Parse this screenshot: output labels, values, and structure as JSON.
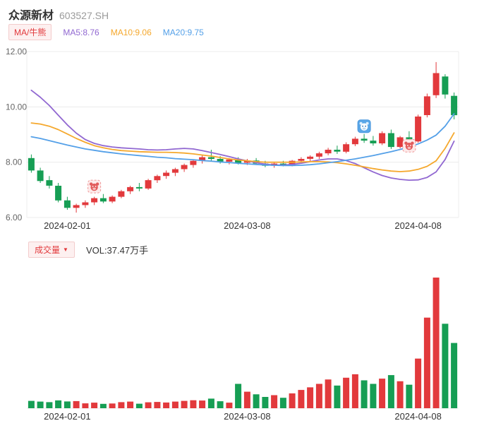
{
  "header": {
    "title": "众源新材",
    "code": "603527.SH"
  },
  "legend": {
    "ma_toggle": "MA/牛熊",
    "ma5": "MA5:8.76",
    "ma10": "MA10:9.06",
    "ma20": "MA20:9.75"
  },
  "volume_header": {
    "label": "成交量",
    "dropdown_arrow": "▼",
    "vol_text": "VOL:37.47万手"
  },
  "colors": {
    "up": "#e2393c",
    "down": "#169e54",
    "ma5": "#9168d1",
    "ma10": "#f5a82d",
    "ma20": "#54a0e8",
    "bull": "#5aa7e8",
    "bear": "#e25c5c",
    "grid": "#ececec",
    "axis_text": "#666666",
    "x_label": "#333333"
  },
  "chart_data": {
    "type": "candlestick",
    "title": "众源新材 603527.SH",
    "legend_position": "top",
    "grid": true,
    "candle_format": [
      "open",
      "high",
      "low",
      "close"
    ],
    "ylim": [
      6,
      12
    ],
    "y_ticks": [
      12,
      10,
      8,
      6
    ],
    "y_tick_labels": [
      "12.00",
      "10.00",
      "8.00",
      "6.00"
    ],
    "x_tick_labels": [
      "2024-02-01",
      "2024-03-08",
      "2024-04-08"
    ],
    "x_tick_indices": [
      4,
      24,
      43
    ],
    "candles": [
      [
        8.15,
        8.28,
        7.62,
        7.7
      ],
      [
        7.7,
        7.8,
        7.25,
        7.32
      ],
      [
        7.35,
        7.5,
        7.05,
        7.15
      ],
      [
        7.15,
        7.25,
        6.55,
        6.62
      ],
      [
        6.62,
        6.75,
        6.28,
        6.35
      ],
      [
        6.35,
        6.5,
        6.18,
        6.45
      ],
      [
        6.45,
        6.62,
        6.35,
        6.55
      ],
      [
        6.55,
        6.75,
        6.45,
        6.7
      ],
      [
        6.7,
        6.85,
        6.52,
        6.58
      ],
      [
        6.58,
        6.8,
        6.52,
        6.75
      ],
      [
        6.75,
        7.0,
        6.7,
        6.95
      ],
      [
        6.95,
        7.15,
        6.85,
        7.1
      ],
      [
        7.1,
        7.25,
        6.95,
        7.05
      ],
      [
        7.05,
        7.4,
        7.0,
        7.35
      ],
      [
        7.35,
        7.55,
        7.25,
        7.5
      ],
      [
        7.5,
        7.7,
        7.4,
        7.62
      ],
      [
        7.62,
        7.8,
        7.5,
        7.75
      ],
      [
        7.75,
        7.95,
        7.65,
        7.9
      ],
      [
        7.9,
        8.1,
        7.8,
        8.05
      ],
      [
        8.05,
        8.25,
        7.95,
        8.18
      ],
      [
        8.18,
        8.45,
        8.05,
        8.12
      ],
      [
        8.12,
        8.22,
        7.95,
        8.02
      ],
      [
        8.02,
        8.15,
        7.92,
        8.1
      ],
      [
        8.1,
        8.18,
        7.92,
        7.98
      ],
      [
        7.98,
        8.12,
        7.9,
        8.06
      ],
      [
        8.06,
        8.15,
        7.9,
        7.95
      ],
      [
        7.95,
        8.05,
        7.82,
        7.87
      ],
      [
        7.87,
        8.0,
        7.8,
        7.95
      ],
      [
        7.95,
        8.05,
        7.85,
        7.9
      ],
      [
        7.9,
        8.08,
        7.85,
        8.05
      ],
      [
        8.05,
        8.18,
        7.98,
        8.12
      ],
      [
        8.12,
        8.25,
        8.02,
        8.2
      ],
      [
        8.2,
        8.38,
        8.12,
        8.32
      ],
      [
        8.32,
        8.52,
        8.25,
        8.45
      ],
      [
        8.45,
        8.6,
        8.3,
        8.38
      ],
      [
        8.38,
        8.72,
        8.32,
        8.65
      ],
      [
        8.65,
        8.92,
        8.58,
        8.85
      ],
      [
        8.85,
        9.02,
        8.7,
        8.78
      ],
      [
        8.78,
        8.95,
        8.6,
        8.68
      ],
      [
        8.68,
        9.12,
        8.62,
        9.05
      ],
      [
        9.05,
        9.18,
        8.48,
        8.55
      ],
      [
        8.55,
        8.95,
        8.5,
        8.9
      ],
      [
        8.9,
        9.12,
        8.68,
        8.75
      ],
      [
        8.75,
        9.72,
        8.7,
        9.65
      ],
      [
        9.7,
        10.48,
        9.62,
        10.38
      ],
      [
        10.42,
        11.62,
        10.32,
        11.22
      ],
      [
        11.1,
        11.18,
        10.3,
        10.45
      ],
      [
        10.4,
        10.52,
        9.55,
        9.7
      ]
    ],
    "volumes": [
      4.2,
      3.8,
      3.5,
      4.5,
      3.9,
      4.1,
      2.8,
      3.2,
      2.5,
      2.7,
      3.5,
      3.8,
      2.6,
      3.4,
      3.6,
      3.3,
      3.8,
      4.2,
      4.6,
      4.4,
      5.5,
      4.0,
      3.2,
      14.0,
      9.5,
      8.0,
      6.5,
      7.5,
      6.0,
      8.5,
      10.5,
      12.0,
      14.0,
      16.5,
      13.0,
      17.5,
      19.5,
      16.0,
      14.0,
      17.0,
      19.0,
      15.5,
      13.5,
      28.5,
      52.0,
      75.0,
      48.5,
      37.47
    ],
    "volume_unit": "万手",
    "latest_volume_label": "VOL:37.47万手",
    "series": [
      {
        "name": "MA5",
        "color_key": "ma5",
        "values": [
          10.6,
          10.35,
          10.05,
          9.7,
          9.35,
          9.05,
          8.82,
          8.68,
          8.6,
          8.55,
          8.52,
          8.5,
          8.48,
          8.45,
          8.44,
          8.45,
          8.48,
          8.5,
          8.48,
          8.42,
          8.35,
          8.28,
          8.2,
          8.12,
          8.05,
          7.98,
          7.93,
          7.9,
          7.9,
          7.92,
          7.96,
          8.02,
          8.08,
          8.12,
          8.12,
          8.06,
          7.95,
          7.8,
          7.65,
          7.52,
          7.43,
          7.38,
          7.35,
          7.36,
          7.45,
          7.65,
          8.1,
          8.76
        ]
      },
      {
        "name": "MA10",
        "color_key": "ma10",
        "values": [
          9.42,
          9.38,
          9.3,
          9.18,
          9.02,
          8.86,
          8.72,
          8.6,
          8.52,
          8.46,
          8.42,
          8.4,
          8.38,
          8.37,
          8.36,
          8.36,
          8.35,
          8.33,
          8.3,
          8.26,
          8.22,
          8.17,
          8.12,
          8.08,
          8.05,
          8.02,
          8.0,
          8.0,
          8.0,
          8.0,
          8.01,
          8.02,
          8.02,
          8.01,
          7.98,
          7.94,
          7.89,
          7.83,
          7.77,
          7.72,
          7.68,
          7.66,
          7.68,
          7.74,
          7.85,
          8.05,
          8.5,
          9.06
        ]
      },
      {
        "name": "MA20",
        "color_key": "ma20",
        "values": [
          8.92,
          8.86,
          8.78,
          8.7,
          8.62,
          8.55,
          8.48,
          8.43,
          8.38,
          8.34,
          8.3,
          8.27,
          8.24,
          8.21,
          8.18,
          8.16,
          8.13,
          8.11,
          8.09,
          8.06,
          8.04,
          8.01,
          7.99,
          7.96,
          7.94,
          7.92,
          7.9,
          7.89,
          7.88,
          7.88,
          7.89,
          7.91,
          7.94,
          7.98,
          8.02,
          8.07,
          8.12,
          8.18,
          8.24,
          8.31,
          8.38,
          8.46,
          8.55,
          8.66,
          8.8,
          8.98,
          9.3,
          9.75
        ]
      }
    ],
    "markers": [
      {
        "type": "bear",
        "index": 7,
        "value": 7.12
      },
      {
        "type": "bull",
        "index": 37,
        "value": 9.3
      },
      {
        "type": "bear",
        "index": 42,
        "value": 8.6
      }
    ]
  }
}
